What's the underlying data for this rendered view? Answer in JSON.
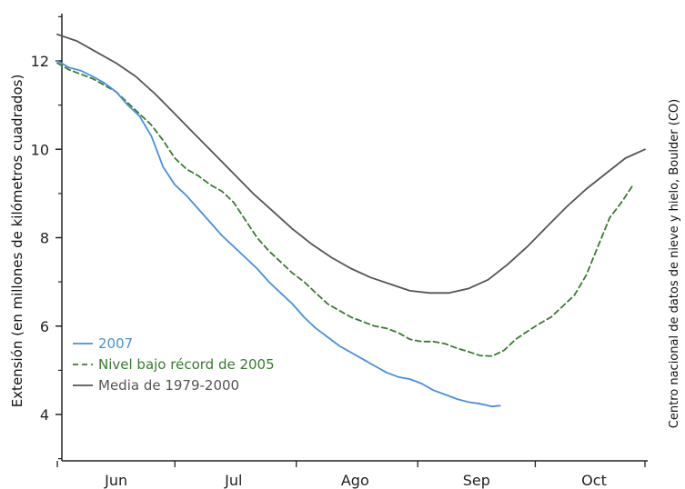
{
  "chart_data": {
    "type": "line",
    "ylabel": "Extensión (en millones de kilómetros cuadrados)",
    "credit": "Centro nacional de datos de nieve y hielo, Boulder (CO)",
    "ylim": [
      3,
      13
    ],
    "yticks": [
      4,
      6,
      8,
      10,
      12
    ],
    "xlim": [
      0,
      150
    ],
    "xticks": [
      {
        "label": "Jun",
        "pos": 15
      },
      {
        "label": "Jul",
        "pos": 45
      },
      {
        "label": "Ago",
        "pos": 76
      },
      {
        "label": "Sep",
        "pos": 107
      },
      {
        "label": "Oct",
        "pos": 137
      }
    ],
    "grid": false,
    "legend_position": "bottom-left",
    "series": [
      {
        "name": "2007",
        "color": "#4a90d9",
        "style": "solid",
        "x": [
          0,
          3,
          6,
          9,
          12,
          15,
          18,
          21,
          24,
          27,
          30,
          33,
          36,
          39,
          42,
          45,
          48,
          51,
          54,
          57,
          60,
          63,
          66,
          69,
          72,
          75,
          78,
          81,
          84,
          87,
          90,
          93,
          96,
          99,
          102,
          105,
          108,
          111,
          113
        ],
        "values": [
          12.0,
          11.85,
          11.78,
          11.65,
          11.5,
          11.3,
          11.0,
          10.75,
          10.3,
          9.6,
          9.2,
          8.95,
          8.65,
          8.35,
          8.05,
          7.8,
          7.55,
          7.3,
          7.0,
          6.75,
          6.5,
          6.2,
          5.95,
          5.75,
          5.55,
          5.4,
          5.25,
          5.1,
          4.95,
          4.85,
          4.8,
          4.7,
          4.55,
          4.45,
          4.35,
          4.28,
          4.24,
          4.18,
          4.2
        ]
      },
      {
        "name": "Nivel bajo récord de 2005",
        "color": "#3a7a32",
        "style": "dashed",
        "x": [
          0,
          3,
          6,
          9,
          12,
          15,
          18,
          21,
          24,
          27,
          30,
          33,
          36,
          39,
          42,
          45,
          48,
          51,
          54,
          57,
          60,
          63,
          66,
          69,
          72,
          75,
          78,
          81,
          84,
          87,
          90,
          93,
          96,
          99,
          102,
          105,
          108,
          111,
          114,
          117,
          120,
          123,
          126,
          129,
          132,
          135,
          138,
          141,
          144,
          147
        ],
        "values": [
          11.95,
          11.8,
          11.7,
          11.6,
          11.45,
          11.3,
          11.05,
          10.8,
          10.55,
          10.2,
          9.8,
          9.55,
          9.4,
          9.2,
          9.05,
          8.8,
          8.4,
          8.0,
          7.7,
          7.45,
          7.2,
          7.0,
          6.75,
          6.5,
          6.35,
          6.2,
          6.1,
          6.0,
          5.95,
          5.85,
          5.7,
          5.65,
          5.65,
          5.6,
          5.5,
          5.42,
          5.33,
          5.32,
          5.45,
          5.7,
          5.88,
          6.05,
          6.2,
          6.45,
          6.7,
          7.15,
          7.8,
          8.45,
          8.8,
          9.2
        ]
      },
      {
        "name": "Media de 1979-2000",
        "color": "#555555",
        "style": "solid",
        "x": [
          0,
          5,
          10,
          15,
          20,
          25,
          30,
          35,
          40,
          45,
          50,
          55,
          60,
          65,
          70,
          75,
          80,
          85,
          90,
          95,
          100,
          105,
          110,
          115,
          120,
          125,
          130,
          135,
          140,
          145,
          150
        ],
        "values": [
          12.6,
          12.45,
          12.2,
          11.95,
          11.65,
          11.25,
          10.8,
          10.35,
          9.9,
          9.45,
          9.0,
          8.6,
          8.2,
          7.85,
          7.55,
          7.3,
          7.1,
          6.95,
          6.8,
          6.75,
          6.75,
          6.85,
          7.05,
          7.4,
          7.8,
          8.25,
          8.7,
          9.1,
          9.45,
          9.8,
          10.0
        ]
      }
    ]
  }
}
